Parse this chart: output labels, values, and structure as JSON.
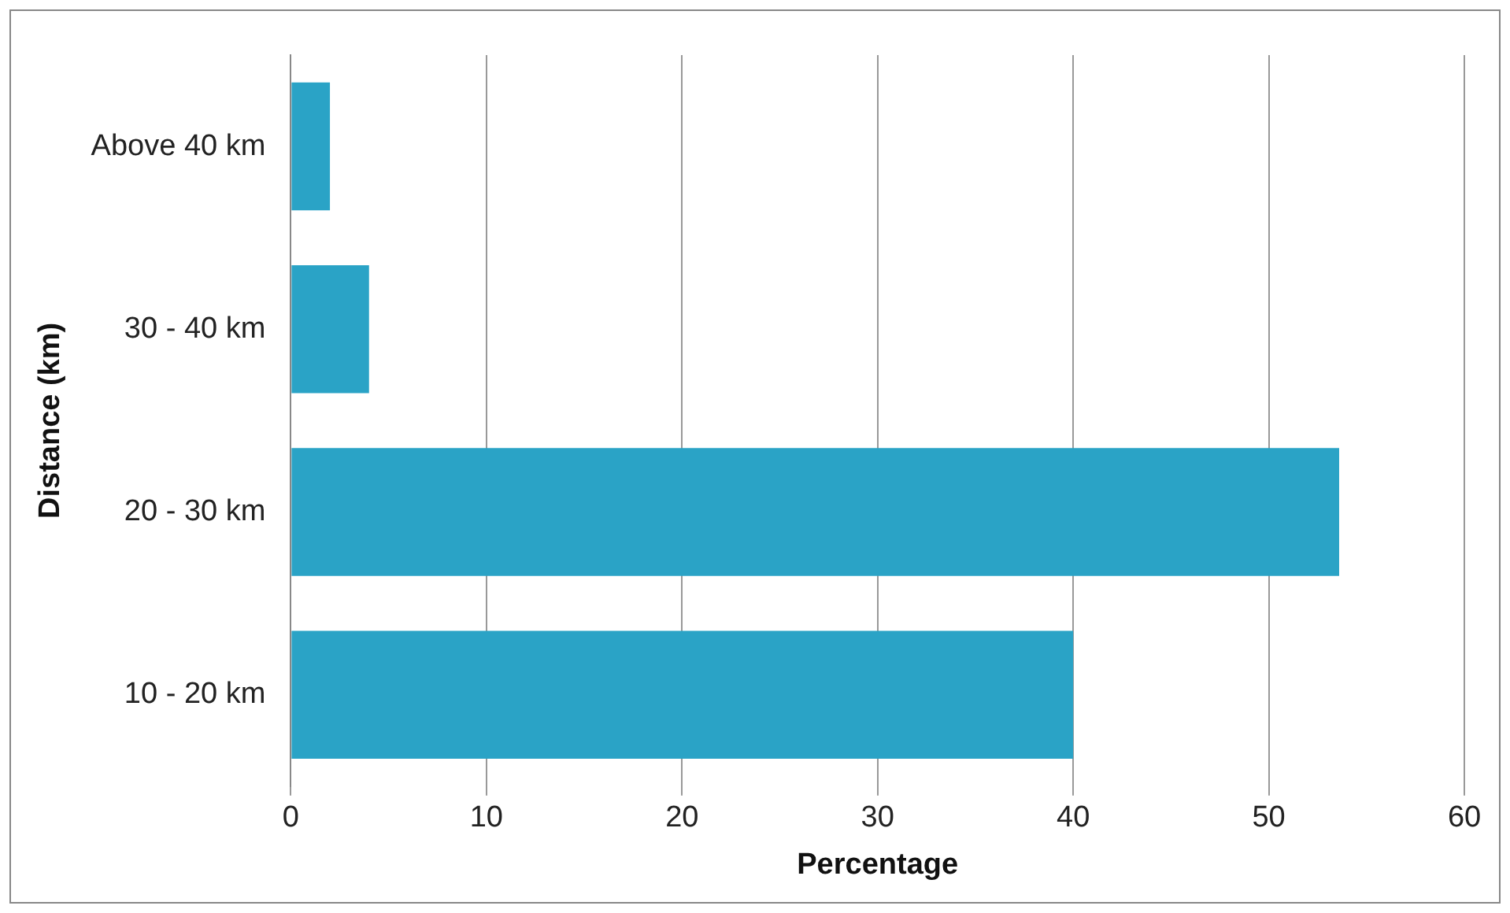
{
  "chart_data": {
    "type": "bar",
    "orientation": "horizontal",
    "xlabel": "Percentage",
    "ylabel": "Distance (km)",
    "categories": [
      "Above 40 km",
      "30 - 40 km",
      "20 - 30 km",
      "10 - 20 km"
    ],
    "values": [
      2,
      4,
      53.6,
      40
    ],
    "color": "#2aa3c6",
    "xlim": [
      0,
      60
    ],
    "xticks": [
      0,
      10,
      20,
      30,
      40,
      50,
      60
    ],
    "grid": "x",
    "legend": false
  }
}
